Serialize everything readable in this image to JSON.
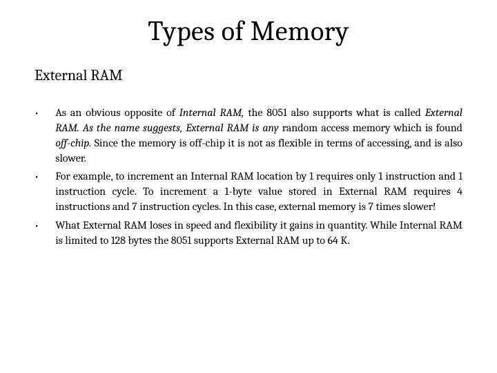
{
  "title": "Types of Memory",
  "subtitle": "External RAM",
  "bullets": [
    {
      "segments": [
        {
          "text": "As an obvious opposite of ",
          "italic": false
        },
        {
          "text": "Internal RAM,",
          "italic": true
        },
        {
          "text": " the 8051 also supports what is called ",
          "italic": false
        },
        {
          "text": "External RAM. As the name suggests, External RAM is any",
          "italic": true
        },
        {
          "text": " random access memory which is found ",
          "italic": false
        },
        {
          "text": "off-chip.",
          "italic": true
        },
        {
          "text": " Since the memory is off-chip it is not as flexible in terms of accessing, and is also slower.",
          "italic": false
        }
      ]
    },
    {
      "segments": [
        {
          "text": "For example, to increment an Internal RAM location by 1 requires only 1 instruction and 1 instruction cycle. To increment a 1-byte value stored in External RAM requires 4 instructions and 7 instruction cycles. In this case, external memory is 7 times slower!",
          "italic": false
        }
      ]
    },
    {
      "segments": [
        {
          "text": "What External RAM loses in speed and flexibility it gains in quantity. While Internal RAM is limited to 128 bytes the 8051 supports External RAM up to 64 K.",
          "italic": false
        }
      ]
    }
  ],
  "colors": {
    "background": "#ffffff",
    "text": "#000000"
  },
  "typography": {
    "title_fontsize": 40,
    "subtitle_fontsize": 22,
    "body_fontsize": 16,
    "font_family": "Cambria, Georgia, serif"
  }
}
